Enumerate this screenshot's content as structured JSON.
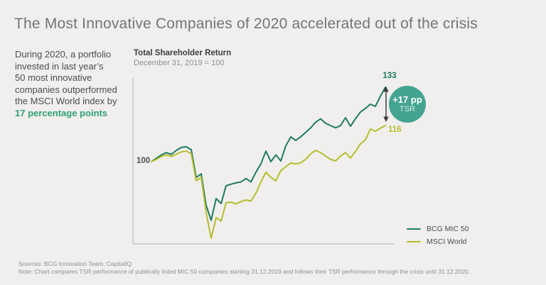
{
  "page": {
    "title": "The Most Innovative Companies of 2020 accelerated out of the crisis",
    "background": "#f0efed"
  },
  "sidebar": {
    "lines": [
      "During 2020, a portfolio",
      "invested in last year’s",
      "50 most innovative",
      "companies outperformed",
      "the MSCI World index by"
    ],
    "highlight": "17 percentage points",
    "highlight_color": "#2fa077"
  },
  "chart": {
    "title": "Total Shareholder Return",
    "subtitle": "December 31, 2019 = 100",
    "baseline_label": "100",
    "annotation": {
      "value_top": "133",
      "value_bottom": "116",
      "badge_line1": "+17 pp",
      "badge_line2": "TSR",
      "badge_color": "#45a491",
      "arrow_color": "#3d3d3d"
    }
  },
  "chart_data": {
    "type": "line",
    "title": "Total Shareholder Return",
    "subtitle": "December 31, 2019 = 100",
    "x_range": [
      "31.12.2019",
      "31.12.2020"
    ],
    "baseline": 100,
    "ylim": [
      60,
      140
    ],
    "grid": false,
    "legend_position": "bottom-right",
    "annotation": "+17 pp TSR",
    "series": [
      {
        "name": "BCG MIC 50",
        "color": "#1e7b60",
        "end_value": 133,
        "values": [
          100,
          101.5,
          103,
          104,
          103.2,
          105,
          106.3,
          106.6,
          105.3,
          93,
          94.6,
          80.5,
          74,
          83.6,
          81.4,
          89.3,
          90,
          90.6,
          91,
          92.5,
          91,
          95.3,
          99,
          104.7,
          100,
          103,
          100.3,
          107,
          111,
          109.4,
          111,
          113,
          115,
          117.5,
          119,
          117,
          116,
          115,
          116,
          119.5,
          115.7,
          119,
          122,
          123.6,
          125.5,
          124.5,
          129,
          133
        ]
      },
      {
        "name": "MSCI World",
        "color": "#b7bd2d",
        "end_value": 116,
        "values": [
          100,
          101,
          102.3,
          103,
          102.3,
          103.3,
          104.3,
          104.7,
          103.5,
          91.5,
          93,
          77.4,
          66,
          75.2,
          73.6,
          81.8,
          82,
          81.3,
          82.3,
          83,
          82.5,
          86,
          91,
          95.3,
          93,
          91.5,
          96,
          97.8,
          99.4,
          99,
          99.5,
          101,
          103.5,
          105,
          104,
          102.5,
          101,
          100.3,
          102.5,
          104,
          101.6,
          104.5,
          107.9,
          109.7,
          114.5,
          113.5,
          114.8,
          116
        ]
      }
    ]
  },
  "footer": {
    "sources": "Sources: BCG Innovation Team; CapitalIQ.",
    "note": "Note: Chart compares TSR performance of publically listed MIC 50 companies starting 31.12.2019 and follows their TSR performance through the crisis until 31.12.2020."
  }
}
